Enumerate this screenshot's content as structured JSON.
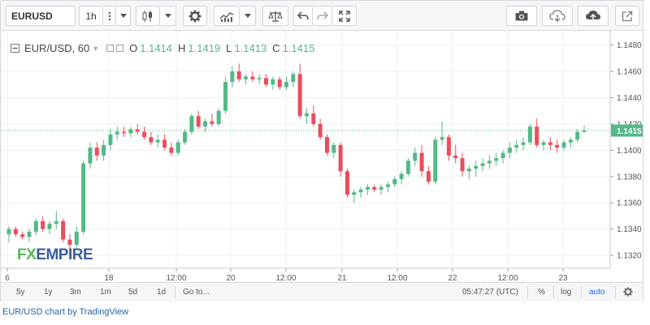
{
  "toolbar": {
    "symbol": "EURUSD",
    "interval": "1h",
    "icons": [
      "more-icon",
      "dropdown-icon",
      "candles-icon",
      "dropdown-icon",
      "settings-icon",
      "indicators-icon",
      "dropdown-icon",
      "compare-icon",
      "undo-icon",
      "redo-icon",
      "fullscreen-icon",
      "camera-icon",
      "cloud-download-icon",
      "cloud-upload-icon",
      "popout-icon"
    ]
  },
  "legend": {
    "pair": "EUR/USD, 60",
    "o_label": "O",
    "o": "1.1414",
    "h_label": "H",
    "h": "1.1419",
    "l_label": "L",
    "l": "1.1413",
    "c_label": "C",
    "c": "1.1415"
  },
  "logo": {
    "fx": "FX",
    "empire": "EMPIRE"
  },
  "bottom": {
    "ranges": [
      "5y",
      "1y",
      "3m",
      "1m",
      "5d",
      "1d"
    ],
    "goto": "Go to...",
    "time": "05:47:27 (UTC)",
    "percent": "%",
    "log": "log",
    "auto": "auto"
  },
  "caption": "EUR/USD chart by TradingView",
  "colors": {
    "up": "#53b987",
    "down": "#eb4d5c",
    "last_price": "#53b987",
    "link": "#2962a8"
  },
  "chart_data": {
    "type": "candlestick",
    "y_ticks": [
      "1.1480",
      "1.1460",
      "1.1440",
      "1.1420",
      "1.1400",
      "1.1380",
      "1.1360",
      "1.1340",
      "1.1320"
    ],
    "ylim": [
      1.1312,
      1.1486
    ],
    "x_ticks": [
      "6",
      "18",
      "12:00",
      "20",
      "12:00",
      "21",
      "12:00",
      "22",
      "12:00",
      "23"
    ],
    "last_price": "1.1415",
    "candles": [
      [
        1.1336,
        1.1342,
        1.133,
        1.134
      ],
      [
        1.134,
        1.1342,
        1.1334,
        1.1336
      ],
      [
        1.1336,
        1.1338,
        1.1332,
        1.1334
      ],
      [
        1.1334,
        1.134,
        1.133,
        1.1338
      ],
      [
        1.1338,
        1.1348,
        1.1335,
        1.1346
      ],
      [
        1.1346,
        1.135,
        1.1338,
        1.134
      ],
      [
        1.134,
        1.1346,
        1.1336,
        1.1344
      ],
      [
        1.1344,
        1.1354,
        1.134,
        1.1346
      ],
      [
        1.1346,
        1.1348,
        1.133,
        1.1332
      ],
      [
        1.1332,
        1.1336,
        1.1324,
        1.1328
      ],
      [
        1.1328,
        1.1342,
        1.1326,
        1.1338
      ],
      [
        1.1338,
        1.1392,
        1.1336,
        1.139
      ],
      [
        1.139,
        1.1406,
        1.1386,
        1.1402
      ],
      [
        1.1402,
        1.1406,
        1.1392,
        1.1396
      ],
      [
        1.1396,
        1.1408,
        1.1392,
        1.1404
      ],
      [
        1.1404,
        1.1416,
        1.14,
        1.1412
      ],
      [
        1.1412,
        1.1418,
        1.1408,
        1.1414
      ],
      [
        1.1414,
        1.1418,
        1.141,
        1.1413
      ],
      [
        1.1413,
        1.1418,
        1.141,
        1.1416
      ],
      [
        1.1416,
        1.142,
        1.1412,
        1.1414
      ],
      [
        1.1414,
        1.1418,
        1.1408,
        1.141
      ],
      [
        1.141,
        1.1414,
        1.1404,
        1.1406
      ],
      [
        1.1406,
        1.1412,
        1.1402,
        1.1408
      ],
      [
        1.1408,
        1.1412,
        1.14,
        1.1402
      ],
      [
        1.1402,
        1.1406,
        1.1396,
        1.1398
      ],
      [
        1.1398,
        1.1408,
        1.1396,
        1.1406
      ],
      [
        1.1406,
        1.1416,
        1.1404,
        1.1414
      ],
      [
        1.1414,
        1.1428,
        1.1412,
        1.1426
      ],
      [
        1.1426,
        1.143,
        1.1416,
        1.1418
      ],
      [
        1.1418,
        1.1424,
        1.1414,
        1.1422
      ],
      [
        1.1422,
        1.1428,
        1.1418,
        1.142
      ],
      [
        1.142,
        1.1432,
        1.1418,
        1.143
      ],
      [
        1.143,
        1.1456,
        1.1428,
        1.1452
      ],
      [
        1.1452,
        1.1464,
        1.1448,
        1.146
      ],
      [
        1.146,
        1.1466,
        1.1452,
        1.1454
      ],
      [
        1.1454,
        1.1458,
        1.145,
        1.1456
      ],
      [
        1.1456,
        1.146,
        1.1452,
        1.1454
      ],
      [
        1.1454,
        1.1458,
        1.145,
        1.1455
      ],
      [
        1.1455,
        1.1458,
        1.1448,
        1.145
      ],
      [
        1.145,
        1.1456,
        1.1446,
        1.1454
      ],
      [
        1.1454,
        1.1456,
        1.1446,
        1.1448
      ],
      [
        1.1448,
        1.1456,
        1.1446,
        1.1452
      ],
      [
        1.1452,
        1.146,
        1.1448,
        1.1458
      ],
      [
        1.1458,
        1.1466,
        1.1424,
        1.1426
      ],
      [
        1.1426,
        1.1432,
        1.142,
        1.1428
      ],
      [
        1.1428,
        1.1434,
        1.1418,
        1.142
      ],
      [
        1.142,
        1.1424,
        1.1408,
        1.141
      ],
      [
        1.141,
        1.1412,
        1.1396,
        1.1398
      ],
      [
        1.1398,
        1.1406,
        1.1394,
        1.1404
      ],
      [
        1.1404,
        1.1406,
        1.138,
        1.1384
      ],
      [
        1.1384,
        1.1386,
        1.1364,
        1.1366
      ],
      [
        1.1366,
        1.137,
        1.136,
        1.1368
      ],
      [
        1.1368,
        1.1372,
        1.1364,
        1.137
      ],
      [
        1.137,
        1.1374,
        1.1366,
        1.1372
      ],
      [
        1.1372,
        1.1374,
        1.1368,
        1.137
      ],
      [
        1.137,
        1.1374,
        1.1366,
        1.1372
      ],
      [
        1.1372,
        1.1376,
        1.1368,
        1.1374
      ],
      [
        1.1374,
        1.138,
        1.1372,
        1.1378
      ],
      [
        1.1378,
        1.1384,
        1.1374,
        1.1382
      ],
      [
        1.1382,
        1.1394,
        1.138,
        1.1392
      ],
      [
        1.1392,
        1.1402,
        1.1388,
        1.1398
      ],
      [
        1.1398,
        1.1404,
        1.138,
        1.1384
      ],
      [
        1.1384,
        1.1388,
        1.1374,
        1.1376
      ],
      [
        1.1376,
        1.141,
        1.1374,
        1.1408
      ],
      [
        1.1408,
        1.1422,
        1.1404,
        1.141
      ],
      [
        1.141,
        1.1412,
        1.1392,
        1.1396
      ],
      [
        1.1396,
        1.1404,
        1.139,
        1.1394
      ],
      [
        1.1394,
        1.1398,
        1.138,
        1.1384
      ],
      [
        1.1384,
        1.1388,
        1.1378,
        1.1386
      ],
      [
        1.1386,
        1.1392,
        1.138,
        1.1388
      ],
      [
        1.1388,
        1.1394,
        1.1384,
        1.139
      ],
      [
        1.139,
        1.1396,
        1.1386,
        1.1392
      ],
      [
        1.1392,
        1.1398,
        1.1388,
        1.1394
      ],
      [
        1.1394,
        1.14,
        1.139,
        1.1398
      ],
      [
        1.1398,
        1.1406,
        1.1394,
        1.1402
      ],
      [
        1.1402,
        1.1408,
        1.1398,
        1.1404
      ],
      [
        1.1404,
        1.141,
        1.14,
        1.1406
      ],
      [
        1.1406,
        1.142,
        1.1404,
        1.1418
      ],
      [
        1.1418,
        1.1424,
        1.1402,
        1.1404
      ],
      [
        1.1404,
        1.1408,
        1.14,
        1.1406
      ],
      [
        1.1406,
        1.141,
        1.14,
        1.1404
      ],
      [
        1.1404,
        1.1408,
        1.1398,
        1.1402
      ],
      [
        1.1402,
        1.1408,
        1.14,
        1.1406
      ],
      [
        1.1406,
        1.141,
        1.1402,
        1.1408
      ],
      [
        1.1408,
        1.1416,
        1.1406,
        1.1414
      ],
      [
        1.1414,
        1.1419,
        1.1413,
        1.1415
      ]
    ]
  }
}
